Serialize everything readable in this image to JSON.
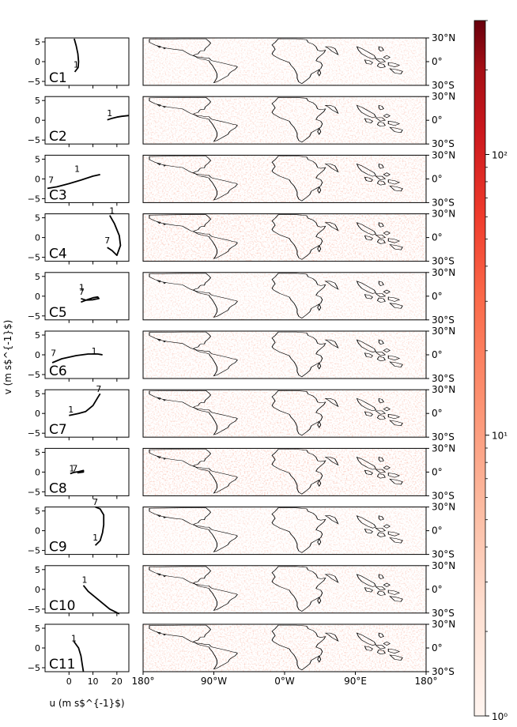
{
  "figure": {
    "ylabel": "v (m s$^{-1}$)",
    "xlabel": "u (m s$^{-1}$)",
    "hodograph_yticks": [
      "5",
      "0",
      "−5"
    ],
    "hodograph_xticks": [
      "0",
      "10",
      "20"
    ],
    "map_lat_ticks": [
      "30°N",
      "0°",
      "30°S"
    ],
    "map_lon_ticks": [
      "180°",
      "90°W",
      "0°W",
      "90°E",
      "180°"
    ]
  },
  "colorbar": {
    "scale": "log",
    "range": [
      1,
      300
    ],
    "major_labels": [
      "10$^{0}$",
      "10$^{1}$",
      "10$^{2}$"
    ],
    "colors": [
      "#fff5f0",
      "#fee0d2",
      "#fcbba1",
      "#fc9272",
      "#fb6a4a",
      "#ef3b2c",
      "#cb181d",
      "#a50f15",
      "#67000d"
    ]
  },
  "chart_data": {
    "type": "hodograph_and_map_panels",
    "hodograph_axes": {
      "xlim": [
        -10,
        25
      ],
      "ylim": [
        -6,
        6
      ],
      "xlabel": "u (m s$^{-1}$)",
      "ylabel": "v (m s$^{-1}$)"
    },
    "map_axes": {
      "lon_range": [
        -180,
        180
      ],
      "lat_range": [
        -30,
        30
      ]
    },
    "clusters": [
      {
        "name": "C1",
        "profile_labels": [
          "1"
        ],
        "profile": [
          [
            2.2,
            5.8
          ],
          [
            3.0,
            4.0
          ],
          [
            3.7,
            2.0
          ],
          [
            4.0,
            0.0
          ],
          [
            3.8,
            -1.5
          ],
          [
            2.4,
            -2.6
          ]
        ],
        "label_points": [
          {
            "text": "1",
            "u": 3.0,
            "v": -1.5
          }
        ]
      },
      {
        "name": "C2",
        "profile_labels": [
          "1"
        ],
        "profile": [
          [
            16,
            0.1
          ],
          [
            18,
            0.5
          ],
          [
            20,
            0.8
          ],
          [
            22,
            1.0
          ],
          [
            25,
            1.2
          ]
        ],
        "label_points": [
          {
            "text": "1",
            "u": 17,
            "v": 1.0
          }
        ]
      },
      {
        "name": "C3",
        "profile_labels": [
          "1",
          "7"
        ],
        "profile": [
          [
            -9,
            -2.4
          ],
          [
            -5,
            -2.0
          ],
          [
            0,
            -1.2
          ],
          [
            5,
            -0.3
          ],
          [
            10,
            0.7
          ],
          [
            13,
            1.1
          ]
        ],
        "label_points": [
          {
            "text": "7",
            "u": -7.5,
            "v": -1.0
          },
          {
            "text": "1",
            "u": 3.4,
            "v": 1.8
          }
        ]
      },
      {
        "name": "C4",
        "profile_labels": [
          "1",
          "7"
        ],
        "profile": [
          [
            17,
            5.6
          ],
          [
            19,
            3.5
          ],
          [
            21,
            0.5
          ],
          [
            21.5,
            -2.0
          ],
          [
            20,
            -4.5
          ],
          [
            18,
            -3.3
          ],
          [
            16,
            -2.5
          ]
        ],
        "label_points": [
          {
            "text": "1",
            "u": 18,
            "v": 6.0
          },
          {
            "text": "7",
            "u": 16,
            "v": -1.5
          }
        ]
      },
      {
        "name": "C5",
        "profile_labels": [
          "1",
          "7"
        ],
        "profile": [
          [
            5,
            -1.5
          ],
          [
            8,
            -0.8
          ],
          [
            10,
            -0.4
          ],
          [
            12,
            -0.2
          ],
          [
            12.5,
            -0.6
          ],
          [
            10,
            -0.9
          ],
          [
            7,
            -1.0
          ],
          [
            5,
            -0.6
          ]
        ],
        "label_points": [
          {
            "text": "1",
            "u": 5.3,
            "v": 1.5
          },
          {
            "text": "7",
            "u": 5.3,
            "v": 0.4
          }
        ]
      },
      {
        "name": "C6",
        "profile_labels": [
          "1",
          "7"
        ],
        "profile": [
          [
            -7,
            -2.0
          ],
          [
            -3,
            -1.0
          ],
          [
            3,
            -0.2
          ],
          [
            8,
            0.2
          ],
          [
            12,
            0.2
          ],
          [
            14,
            0.0
          ]
        ],
        "label_points": [
          {
            "text": "7",
            "u": -6.5,
            "v": -0.3
          },
          {
            "text": "1",
            "u": 10.5,
            "v": 0.2
          }
        ]
      },
      {
        "name": "C7",
        "profile_labels": [
          "1",
          "7"
        ],
        "profile": [
          [
            0,
            -0.5
          ],
          [
            4,
            0.0
          ],
          [
            7,
            0.5
          ],
          [
            10,
            2.0
          ],
          [
            12,
            4.0
          ],
          [
            13,
            5.0
          ]
        ],
        "label_points": [
          {
            "text": "1",
            "u": 0.8,
            "v": 0.2
          },
          {
            "text": "7",
            "u": 12.4,
            "v": 5.4
          }
        ]
      },
      {
        "name": "C8",
        "profile_labels": [
          "1",
          "7"
        ],
        "profile": [
          [
            0.5,
            -0.4
          ],
          [
            2,
            -0.1
          ],
          [
            4,
            0.1
          ],
          [
            6,
            0.4
          ],
          [
            6,
            0.0
          ],
          [
            3.5,
            -0.2
          ]
        ],
        "label_points": [
          {
            "text": "1",
            "u": 1.2,
            "v": 0.2
          },
          {
            "text": "7",
            "u": 2.5,
            "v": 0.2
          }
        ]
      },
      {
        "name": "C9",
        "profile_labels": [
          "1",
          "7"
        ],
        "profile": [
          [
            11,
            -3.7
          ],
          [
            13,
            -2.5
          ],
          [
            14,
            -0.5
          ],
          [
            14.5,
            1.5
          ],
          [
            14.5,
            4.0
          ],
          [
            13,
            5.5
          ],
          [
            11,
            6.0
          ]
        ],
        "label_points": [
          {
            "text": "1",
            "u": 11,
            "v": -2.5
          },
          {
            "text": "7",
            "u": 11,
            "v": 6.5
          }
        ]
      },
      {
        "name": "C10",
        "profile_labels": [
          "1"
        ],
        "profile": [
          [
            6,
            1.0
          ],
          [
            8,
            -0.5
          ],
          [
            11,
            -2.0
          ],
          [
            14,
            -3.5
          ],
          [
            17,
            -5.0
          ],
          [
            21,
            -6.2
          ]
        ],
        "label_points": [
          {
            "text": "1",
            "u": 6.5,
            "v": 1.7
          }
        ]
      },
      {
        "name": "C11",
        "profile_labels": [
          "1"
        ],
        "profile": [
          [
            2,
            1.7
          ],
          [
            4,
            0.0
          ],
          [
            5,
            -2.0
          ],
          [
            5.5,
            -4.0
          ],
          [
            6,
            -6.0
          ]
        ],
        "label_points": [
          {
            "text": "1",
            "u": 2,
            "v": 1.7
          }
        ]
      }
    ]
  }
}
